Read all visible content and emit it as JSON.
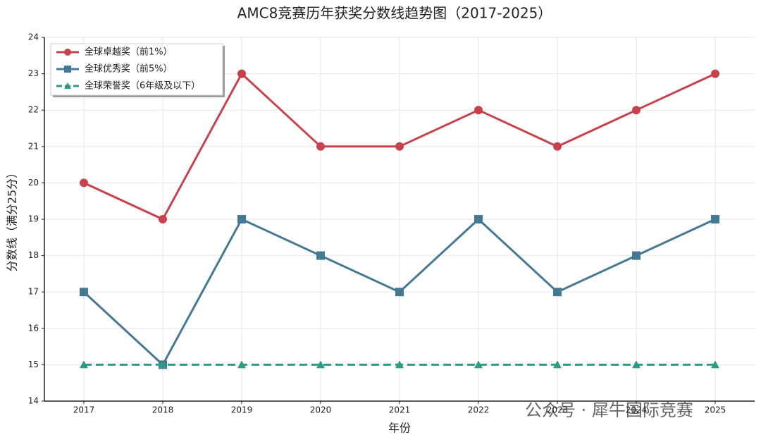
{
  "chart_data": {
    "type": "line",
    "title": "AMC8竞赛历年获奖分数线趋势图（2017-2025）",
    "x_label": "年份",
    "y_label": "分数线（满分25分）",
    "categories": [
      "2017",
      "2018",
      "2019",
      "2020",
      "2021",
      "2022",
      "2023",
      "2024",
      "2025"
    ],
    "series": [
      {
        "name": "全球卓越奖（前1%）",
        "color": "#c8414b",
        "marker": "circle",
        "dash": "solid",
        "values": [
          20,
          19,
          23,
          21,
          21,
          22,
          21,
          22,
          23
        ]
      },
      {
        "name": "全球优秀奖（前5%）",
        "color": "#457893",
        "marker": "square",
        "dash": "solid",
        "values": [
          17,
          15,
          19,
          18,
          17,
          19,
          17,
          18,
          19
        ]
      },
      {
        "name": "全球荣誉奖（6年级及以下）",
        "color": "#2f9983",
        "marker": "triangle",
        "dash": "dashed",
        "values": [
          15,
          15,
          15,
          15,
          15,
          15,
          15,
          15,
          15
        ]
      }
    ],
    "ylim": [
      14,
      24
    ],
    "yticks": [
      14,
      15,
      16,
      17,
      18,
      19,
      20,
      21,
      22,
      23,
      24
    ],
    "grid": true,
    "legend": "upper-left",
    "watermark": "公众号 · 犀牛国际竞赛"
  }
}
